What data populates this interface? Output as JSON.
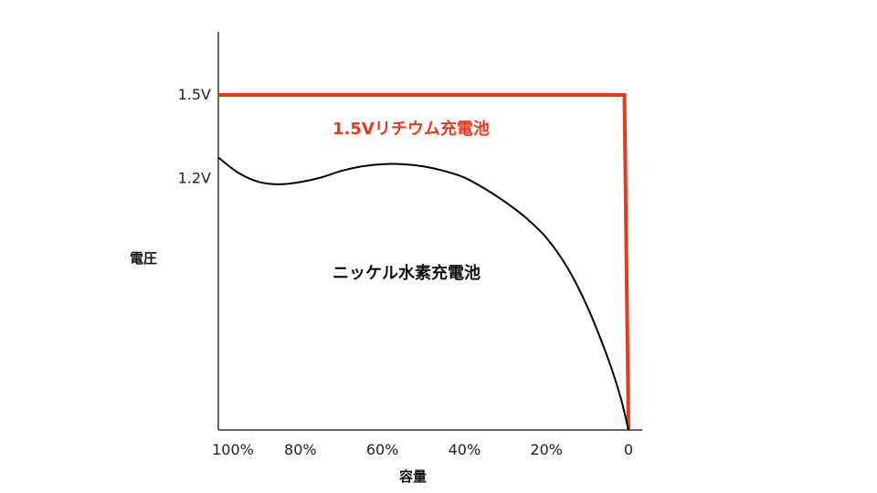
{
  "chart_data": {
    "type": "line",
    "xlabel": "容量",
    "ylabel": "電圧",
    "x_tick_labels": [
      "100%",
      "80%",
      "60%",
      "40%",
      "20%",
      "0"
    ],
    "y_tick_labels": [
      "1.5V",
      "1.2V"
    ],
    "x_axis": "remaining capacity, decreasing left to right",
    "xlim": [
      100,
      0
    ],
    "ylim": [
      0,
      1.5
    ],
    "grid": false,
    "legend": "none",
    "series": [
      {
        "name": "1.5Vリチウム充電池",
        "color": "#e53a1c",
        "x": [
          100,
          80,
          60,
          40,
          20,
          1,
          0
        ],
        "y": [
          1.5,
          1.5,
          1.5,
          1.5,
          1.5,
          1.5,
          0
        ]
      },
      {
        "name": "ニッケル水素充電池",
        "color": "#000000",
        "x": [
          100,
          95,
          90,
          85,
          80,
          75,
          70,
          65,
          60,
          55,
          50,
          45,
          40,
          35,
          30,
          25,
          20,
          15,
          10,
          5,
          2,
          0
        ],
        "y": [
          1.22,
          1.15,
          1.11,
          1.1,
          1.11,
          1.13,
          1.16,
          1.18,
          1.19,
          1.19,
          1.18,
          1.16,
          1.13,
          1.08,
          1.02,
          0.95,
          0.86,
          0.73,
          0.55,
          0.32,
          0.15,
          0
        ]
      }
    ]
  }
}
